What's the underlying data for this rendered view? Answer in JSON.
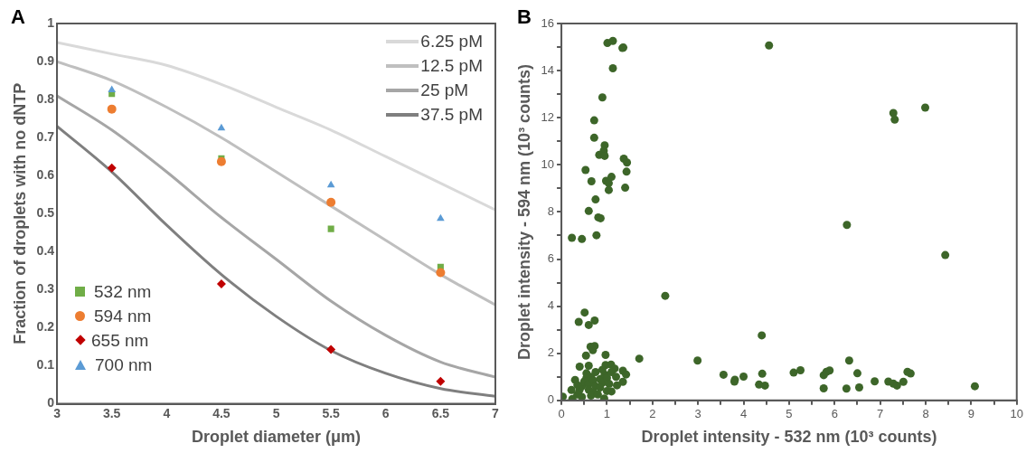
{
  "chart_data": [
    {
      "type": "scatter",
      "title": "A",
      "xlabel": "Droplet diameter (μm)",
      "ylabel": "Fraction of droplets with no dNTP",
      "xlim": [
        3,
        7
      ],
      "xticks": [
        3,
        3.5,
        4,
        4.5,
        5,
        5.5,
        6,
        6.5,
        7
      ],
      "ylim": [
        0,
        1
      ],
      "yticks": [
        0,
        0.1,
        0.2,
        0.3,
        0.4,
        0.5,
        0.6,
        0.7,
        0.8,
        0.9,
        1
      ],
      "grid": false,
      "legend": "top right",
      "x": [
        3.5,
        4.5,
        5.5,
        6.5
      ],
      "series": [
        {
          "name": "6.25 pM",
          "type": "line",
          "marker": "none",
          "color": "#d9d9d9",
          "x": [
            3,
            3.5,
            4,
            4.5,
            5,
            5.5,
            6,
            6.5,
            7
          ],
          "values": [
            0.95,
            0.92,
            0.89,
            0.84,
            0.78,
            0.72,
            0.65,
            0.58,
            0.51
          ]
        },
        {
          "name": "12.5 pM",
          "type": "line",
          "marker": "none",
          "color": "#bfbfbf",
          "x": [
            3,
            3.5,
            4,
            4.5,
            5,
            5.5,
            6,
            6.5,
            7
          ],
          "values": [
            0.9,
            0.85,
            0.78,
            0.7,
            0.61,
            0.52,
            0.43,
            0.34,
            0.26
          ]
        },
        {
          "name": "25 pM",
          "type": "line",
          "marker": "none",
          "color": "#a6a6a6",
          "x": [
            3,
            3.5,
            4,
            4.5,
            5,
            5.5,
            6,
            6.5,
            7
          ],
          "values": [
            0.81,
            0.72,
            0.61,
            0.49,
            0.38,
            0.27,
            0.18,
            0.11,
            0.07
          ]
        },
        {
          "name": "37.5 pM",
          "type": "line",
          "marker": "none",
          "color": "#7f7f7f",
          "x": [
            3,
            3.5,
            4,
            4.5,
            5,
            5.5,
            6,
            6.5,
            7
          ],
          "values": [
            0.73,
            0.61,
            0.47,
            0.34,
            0.23,
            0.14,
            0.08,
            0.04,
            0.02
          ]
        },
        {
          "name": "532 nm",
          "marker": "square",
          "color": "#70ad47",
          "values": [
            0.815,
            0.645,
            0.46,
            0.36
          ]
        },
        {
          "name": "594 nm",
          "marker": "circle",
          "color": "#ed7d31",
          "values": [
            0.775,
            0.637,
            0.53,
            0.345
          ]
        },
        {
          "name": "655 nm",
          "marker": "diamond",
          "color": "#c00000",
          "values": [
            0.62,
            0.315,
            0.143,
            0.059
          ]
        },
        {
          "name": "700 nm",
          "marker": "triangle",
          "color": "#5b9bd5",
          "values": [
            0.825,
            0.725,
            0.575,
            0.487
          ]
        }
      ]
    },
    {
      "type": "scatter",
      "title": "B",
      "xlabel": "Droplet intensity - 532 nm (10³ counts)",
      "ylabel": "Droplet intensity - 594 nm (10³ counts)",
      "xlim": [
        0,
        10
      ],
      "xticks": [
        0,
        {
          "value": 0.5,
          "label": null
        },
        1,
        {
          "value": 1.5,
          "label": null
        },
        2,
        {
          "value": 2.5,
          "label": null
        },
        3,
        {
          "value": 3.5,
          "label": null
        },
        4,
        {
          "value": 4.5,
          "label": null
        },
        5,
        {
          "value": 5.5,
          "label": null
        },
        6,
        {
          "value": 6.5,
          "label": null
        },
        7,
        {
          "value": 7.5,
          "label": null
        },
        8,
        {
          "value": 8.5,
          "label": null
        },
        9,
        {
          "value": 9.5,
          "label": null
        },
        10
      ],
      "ylim": [
        0,
        16
      ],
      "yticks": [
        0,
        {
          "value": 1,
          "label": null
        },
        2,
        {
          "value": 3,
          "label": null
        },
        4,
        {
          "value": 5,
          "label": null
        },
        6,
        {
          "value": 7,
          "label": null
        },
        8,
        {
          "value": 9,
          "label": null
        },
        10,
        {
          "value": 11,
          "label": null
        },
        12,
        {
          "value": 13,
          "label": null
        },
        14,
        {
          "value": 15,
          "label": null
        },
        16
      ],
      "grid": false,
      "legend": false,
      "marker": "circle",
      "series": [
        {
          "color": "#3d6629",
          "x": [
            1.01,
            1.13,
            1.34,
            1.36,
            1.13,
            0.9,
            0.72,
            0.72,
            0.95,
            0.93,
            0.83,
            0.95,
            1.37,
            1.44,
            0.53,
            1.43,
            0.66,
            0.98,
            1.04,
            1.1,
            1.04,
            1.4,
            0.75,
            0.6,
            0.81,
            0.86,
            4.56,
            7.29,
            7.32,
            7.99,
            6.27,
            0.23,
            0.45,
            0.77,
            8.43,
            2.28,
            0.51,
            0.38,
            0.6,
            0.73,
            4.4,
            0.64,
            0.73,
            0.69,
            0.97,
            0.54,
            0.4,
            0.6,
            1.71,
            2.99,
            3.56,
            3.8,
            3.81,
            4.0,
            4.41,
            4.34,
            4.47,
            5.1,
            5.25,
            5.76,
            5.82,
            5.89,
            6.32,
            6.5,
            5.76,
            6.26,
            6.54,
            6.88,
            7.18,
            7.29,
            7.37,
            7.51,
            7.6,
            7.67,
            9.08,
            0.97,
            1.09,
            1.17,
            1.35,
            1.42,
            1.35,
            1.22,
            1.1,
            0.94,
            0.03,
            0.22,
            0.3,
            0.24,
            0.45,
            0.5,
            0.55,
            0.6,
            0.65,
            0.7,
            0.75,
            0.85,
            0.9,
            0.95,
            1.0,
            0.6,
            0.7,
            0.4,
            0.35,
            0.55,
            0.75,
            0.85,
            1.05,
            1.1,
            0.65,
            0.45,
            0.35,
            0.9,
            1.0,
            1.2,
            0.8
          ],
          "values": [
            15.17,
            15.26,
            14.96,
            14.98,
            14.1,
            12.86,
            11.89,
            11.15,
            10.83,
            10.6,
            10.42,
            10.38,
            10.26,
            10.1,
            9.78,
            9.71,
            9.3,
            9.32,
            9.22,
            9.49,
            8.93,
            9.03,
            8.53,
            8.04,
            7.77,
            7.73,
            15.07,
            12.2,
            11.92,
            12.43,
            7.45,
            6.9,
            6.85,
            7.01,
            6.17,
            4.44,
            3.73,
            3.33,
            3.2,
            3.39,
            2.76,
            2.28,
            2.31,
            2.13,
            1.93,
            1.9,
            1.43,
            1.47,
            1.77,
            1.69,
            1.09,
            0.8,
            0.88,
            1.01,
            1.13,
            0.67,
            0.63,
            1.18,
            1.28,
            1.07,
            1.21,
            1.27,
            1.69,
            1.15,
            0.51,
            0.5,
            0.55,
            0.81,
            0.8,
            0.71,
            0.63,
            0.79,
            1.21,
            1.14,
            0.6,
            1.5,
            1.52,
            1.35,
            1.26,
            1.1,
            0.79,
            0.64,
            0.38,
            0.08,
            0.16,
            0.44,
            0.87,
            0.06,
            0.6,
            0.8,
            0.95,
            0.7,
            1.0,
            0.85,
            0.6,
            0.9,
            0.75,
            1.1,
            0.95,
            0.45,
            0.35,
            0.45,
            0.65,
            1.15,
            1.2,
            0.55,
            0.7,
            1.2,
            0.2,
            0.15,
            0.25,
            1.3,
            0.4,
            1.0,
            0.25
          ]
        }
      ]
    }
  ]
}
